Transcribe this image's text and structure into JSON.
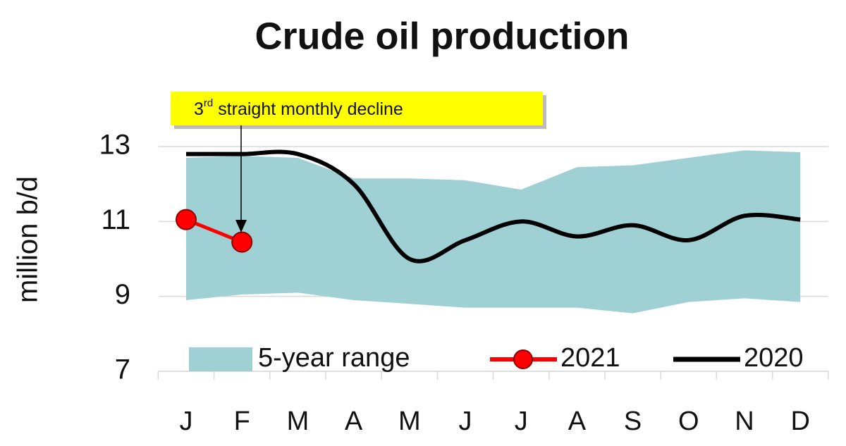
{
  "chart_data": {
    "type": "line",
    "title": "Crude oil production",
    "y_label": "million b/d",
    "annotation": {
      "number": "3",
      "superscript": "rd",
      "text": " straight monthly decline"
    },
    "categories": [
      "J",
      "F",
      "M",
      "A",
      "M",
      "J",
      "J",
      "A",
      "S",
      "O",
      "N",
      "D"
    ],
    "band": {
      "name": "5-year range",
      "color": "#9fd0d3",
      "upper": [
        12.7,
        12.75,
        12.7,
        12.15,
        12.15,
        12.1,
        11.85,
        12.45,
        12.5,
        12.7,
        12.9,
        12.85
      ],
      "lower": [
        8.9,
        9.05,
        9.1,
        8.9,
        8.8,
        8.7,
        8.7,
        8.7,
        8.55,
        8.85,
        8.95,
        8.85
      ]
    },
    "series": [
      {
        "name": "2021",
        "color": "#ff0000",
        "values": [
          11.05,
          10.45,
          null,
          null,
          null,
          null,
          null,
          null,
          null,
          null,
          null,
          null
        ]
      },
      {
        "name": "2020",
        "color": "#000000",
        "values": [
          12.8,
          12.8,
          12.8,
          12.0,
          10.0,
          10.5,
          11.0,
          10.6,
          10.9,
          10.5,
          11.15,
          11.05
        ]
      }
    ],
    "ylim": [
      7,
      13
    ],
    "yticks": [
      7,
      9,
      11,
      13
    ],
    "grid": true
  }
}
